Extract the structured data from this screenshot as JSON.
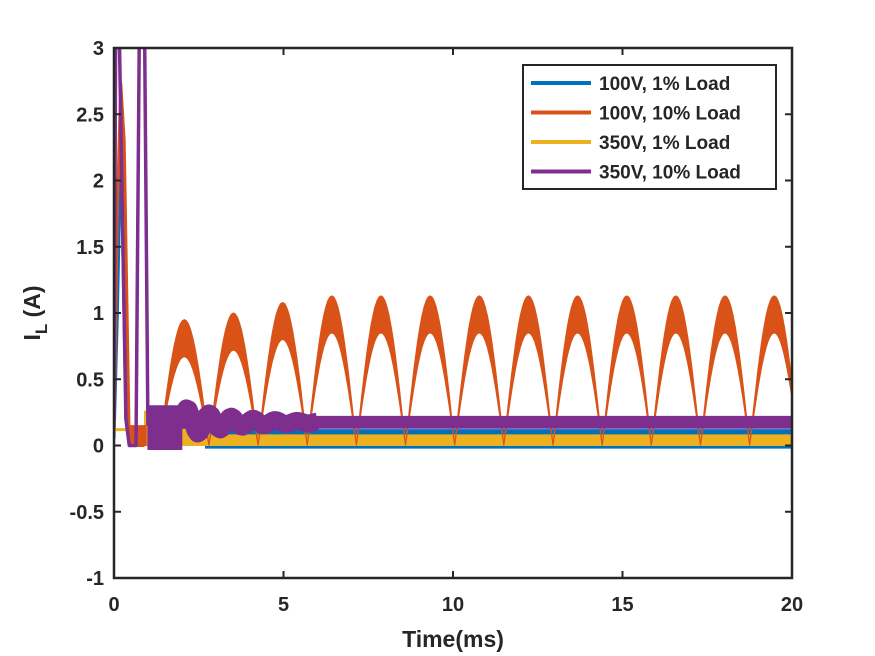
{
  "chart_data": {
    "type": "line",
    "title": "",
    "xlabel": "Time(ms)",
    "ylabel_main": "I",
    "ylabel_sub": "L",
    "ylabel_rest": " (A)",
    "xlim": [
      0,
      20
    ],
    "ylim": [
      -1,
      3
    ],
    "xticks": [
      0,
      5,
      10,
      15,
      20
    ],
    "xtick_labels": [
      "0",
      "5",
      "10",
      "15",
      "20"
    ],
    "yticks": [
      -1,
      -0.5,
      0,
      0.5,
      1,
      1.5,
      2,
      2.5,
      3
    ],
    "ytick_labels": [
      "-1",
      "-0.5",
      "0",
      "0.5",
      "1",
      "1.5",
      "2",
      "2.5",
      "3"
    ],
    "grid": false,
    "legend_position": "top-right",
    "series": [
      {
        "name": "100V, 1% Load",
        "color": "#0072BD",
        "band": {
          "start": 2.7,
          "period": 0.0,
          "low": -0.02,
          "high": 0.12
        }
      },
      {
        "name": "100V, 10% Load",
        "color": "#D95319",
        "band": {
          "start": 1.35,
          "period": 1.45,
          "peak_high": 1.13,
          "peak_low": 0.9,
          "trough": 0.0
        }
      },
      {
        "name": "350V, 1% Load",
        "color": "#EDB120",
        "band": {
          "start": 0.9,
          "low": 0.0,
          "high": 0.08
        }
      },
      {
        "name": "350V, 10% Load",
        "color": "#7E2F8E",
        "band": {
          "start": 1.0,
          "low": 0.13,
          "high": 0.22
        }
      }
    ]
  }
}
